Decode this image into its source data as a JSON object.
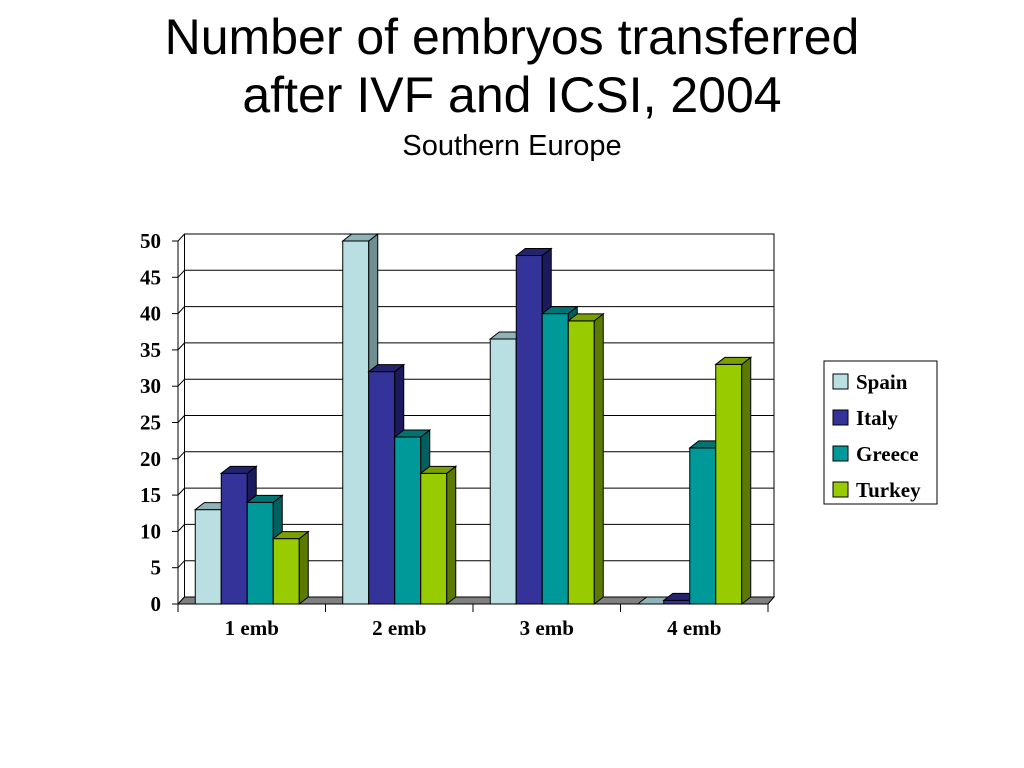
{
  "chart_data": {
    "type": "bar",
    "title": [
      "Number of embryos transferred",
      "after IVF and ICSI, 2004"
    ],
    "subtitle": "Southern Europe",
    "categories": [
      "1 emb",
      "2 emb",
      "3 emb",
      "4 emb"
    ],
    "series": [
      {
        "name": "Spain",
        "color": "#b9dfe3",
        "side": "#6f8f93",
        "top": "#8fb4b8",
        "values": [
          13,
          50,
          36.5,
          0
        ]
      },
      {
        "name": "Italy",
        "color": "#333399",
        "side": "#1a1a5c",
        "top": "#23236e",
        "values": [
          18,
          32,
          48,
          0.5
        ]
      },
      {
        "name": "Greece",
        "color": "#009999",
        "side": "#006060",
        "top": "#007373",
        "values": [
          14,
          23,
          40,
          21.5
        ]
      },
      {
        "name": "Turkey",
        "color": "#99cc00",
        "side": "#5c7a00",
        "top": "#7a9f00",
        "values": [
          9,
          18,
          39,
          33
        ]
      }
    ],
    "ylim": [
      0,
      50
    ],
    "yticks": [
      "0",
      "5",
      "10",
      "15",
      "20",
      "25",
      "30",
      "35",
      "40",
      "45",
      "50"
    ],
    "grid": true,
    "legend_position": "right",
    "three_d": true
  }
}
